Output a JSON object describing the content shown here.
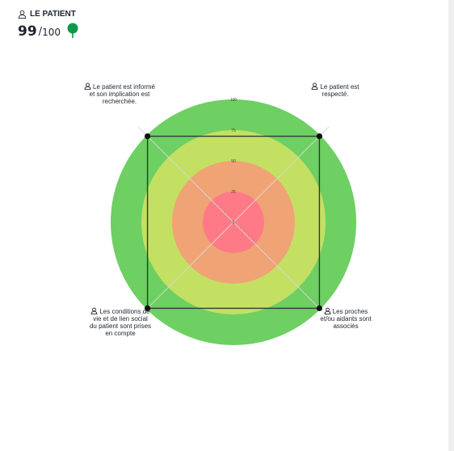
{
  "header": {
    "title": "LE PATIENT",
    "score": "99",
    "score_max": "100",
    "icon": "person-icon",
    "status_icon": "pin-icon",
    "status_color": "#0a9a4a"
  },
  "chart_data": {
    "type": "radar",
    "categories": [
      "Le patient est informé et son implication est recherchée.",
      "Le patient est respecté.",
      "Les proches et/ou aidants sont associés",
      "Les conditions de vie et de lien social du patient sont prises en compte"
    ],
    "values": [
      99,
      99,
      99,
      99
    ],
    "rmax": 100,
    "ticks": [
      "0",
      "25",
      "50",
      "75",
      "100"
    ],
    "bands": [
      {
        "from": 75,
        "to": 100,
        "color": "#6ecf63"
      },
      {
        "from": 50,
        "to": 75,
        "color": "#c3e063"
      },
      {
        "from": 25,
        "to": 50,
        "color": "#f0a374"
      },
      {
        "from": 0,
        "to": 25,
        "color": "#fd7a86"
      }
    ],
    "line_color": "#2e3b33",
    "point_color": "#111111"
  }
}
